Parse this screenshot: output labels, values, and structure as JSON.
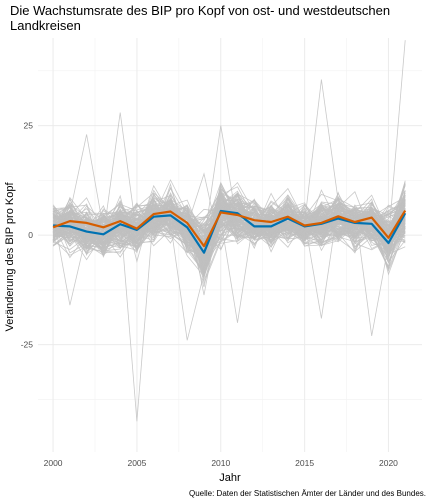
{
  "chart_data": {
    "type": "line",
    "title": "Die Wachstumsrate des BIP pro Kopf von ost- und westdeutschen Landkreisen",
    "title_lines": [
      "Die Wachstumsrate des BIP pro Kopf von ost- und westdeutschen",
      "Landkreisen"
    ],
    "xlabel": "Jahr",
    "ylabel": "Veränderung des BIP pro Kopf",
    "caption": "Quelle: Daten der Statistischen Ämter der Länder und des Bundes.",
    "xlim": [
      1999.1,
      2022.0
    ],
    "ylim": [
      -49.5,
      45.0
    ],
    "x_ticks": [
      2000,
      2005,
      2010,
      2015,
      2020
    ],
    "y_ticks": [
      -25,
      0,
      25
    ],
    "y_tick_labels": [
      "-25",
      "0",
      "25"
    ],
    "grid": true,
    "x": [
      2000,
      2001,
      2002,
      2003,
      2004,
      2005,
      2006,
      2007,
      2008,
      2009,
      2010,
      2011,
      2012,
      2013,
      2014,
      2015,
      2016,
      2017,
      2018,
      2019,
      2020,
      2021
    ],
    "background_series": {
      "count": 150,
      "color": "#bfbfbf",
      "band_center": [
        1.5,
        2.5,
        1.0,
        0.5,
        2.5,
        1.5,
        4.0,
        4.5,
        2.0,
        -3.5,
        5.0,
        4.5,
        2.5,
        2.5,
        3.5,
        2.0,
        2.5,
        3.5,
        2.5,
        3.0,
        -1.0,
        5.0
      ],
      "band_spread": [
        4.5,
        5.5,
        5.0,
        4.5,
        5.0,
        4.5,
        5.0,
        5.0,
        5.5,
        7.0,
        6.0,
        5.5,
        4.5,
        4.5,
        4.5,
        4.5,
        5.0,
        5.0,
        4.5,
        4.5,
        5.5,
        6.0
      ],
      "outliers": [
        {
          "x": 2004,
          "y": 28
        },
        {
          "x": 2005,
          "y": -42.5
        },
        {
          "x": 2009,
          "y": 14
        },
        {
          "x": 2010,
          "y": 25
        },
        {
          "x": 2016,
          "y": 35.5
        },
        {
          "x": 2016,
          "y": -19
        },
        {
          "x": 2019,
          "y": -23
        },
        {
          "x": 2021,
          "y": 44.5
        },
        {
          "x": 2008,
          "y": -24
        },
        {
          "x": 2002,
          "y": 23
        },
        {
          "x": 2011,
          "y": -20
        },
        {
          "x": 2001,
          "y": -16
        }
      ]
    },
    "series": [
      {
        "color": "#0072B2",
        "values": [
          2.2,
          2.0,
          0.8,
          0.2,
          2.5,
          1.2,
          4.2,
          4.5,
          1.8,
          -4.0,
          5.5,
          5.0,
          2.0,
          2.0,
          3.8,
          2.0,
          2.6,
          3.8,
          2.8,
          2.6,
          -1.8,
          5.0
        ]
      },
      {
        "color": "#D55E00",
        "values": [
          1.8,
          3.2,
          2.8,
          1.8,
          3.2,
          1.5,
          4.8,
          5.4,
          2.8,
          -2.5,
          5.2,
          4.6,
          3.4,
          3.0,
          4.2,
          2.2,
          2.8,
          4.3,
          3.0,
          4.0,
          -0.6,
          5.6
        ]
      }
    ]
  }
}
